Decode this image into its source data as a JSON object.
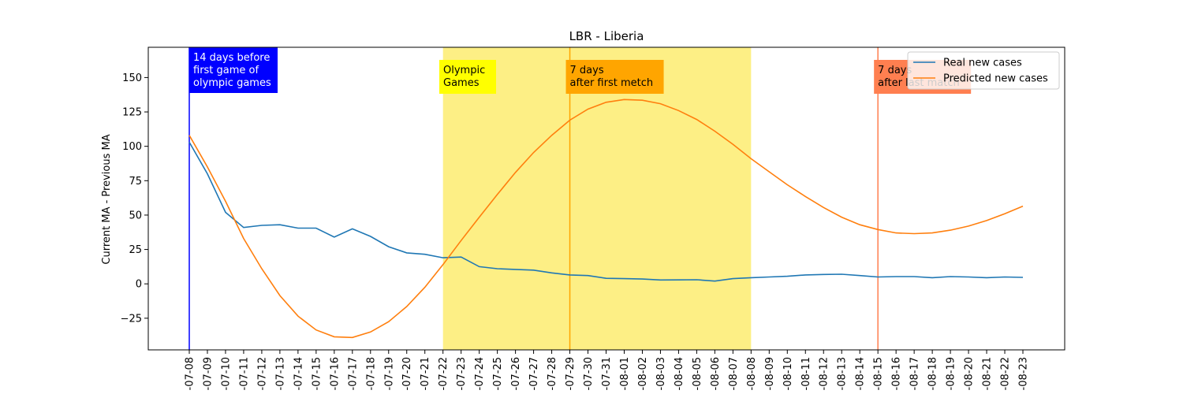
{
  "chart_data": {
    "type": "line",
    "title": "LBR - Liberia",
    "xlabel": "",
    "ylabel": "Current MA - Previous MA",
    "ylim": [
      -48,
      172
    ],
    "yticks": [
      -25,
      0,
      25,
      50,
      75,
      100,
      125,
      150
    ],
    "grid": false,
    "legend_position": "top-right",
    "x": [
      "2021-07-08",
      "2021-07-09",
      "2021-07-10",
      "2021-07-11",
      "2021-07-12",
      "2021-07-13",
      "2021-07-14",
      "2021-07-15",
      "2021-07-16",
      "2021-07-17",
      "2021-07-18",
      "2021-07-19",
      "2021-07-20",
      "2021-07-21",
      "2021-07-22",
      "2021-07-23",
      "2021-07-24",
      "2021-07-25",
      "2021-07-26",
      "2021-07-27",
      "2021-07-28",
      "2021-07-29",
      "2021-07-30",
      "2021-07-31",
      "2021-08-01",
      "2021-08-02",
      "2021-08-03",
      "2021-08-04",
      "2021-08-05",
      "2021-08-06",
      "2021-08-07",
      "2021-08-08",
      "2021-08-09",
      "2021-08-10",
      "2021-08-11",
      "2021-08-12",
      "2021-08-13",
      "2021-08-14",
      "2021-08-15",
      "2021-08-16",
      "2021-08-17",
      "2021-08-18",
      "2021-08-19",
      "2021-08-20",
      "2021-08-21",
      "2021-08-22",
      "2021-08-23"
    ],
    "tick_labels": [
      "-07-08",
      "-07-09",
      "-07-10",
      "-07-11",
      "-07-12",
      "-07-13",
      "-07-14",
      "-07-15",
      "-07-16",
      "-07-17",
      "-07-18",
      "-07-19",
      "-07-20",
      "-07-21",
      "-07-22",
      "-07-23",
      "-07-24",
      "-07-25",
      "-07-26",
      "-07-27",
      "-07-28",
      "-07-29",
      "-07-30",
      "-07-31",
      "-08-01",
      "-08-02",
      "-08-03",
      "-08-04",
      "-08-05",
      "-08-06",
      "-08-07",
      "-08-08",
      "-08-09",
      "-08-10",
      "-08-11",
      "-08-12",
      "-08-13",
      "-08-14",
      "-08-15",
      "-08-16",
      "-08-17",
      "-08-18",
      "-08-19",
      "-08-20",
      "-08-21",
      "-08-22",
      "-08-23"
    ],
    "series": [
      {
        "name": "Real new cases",
        "color": "#1f77b4",
        "values": [
          103,
          80,
          52,
          41,
          42.5,
          43,
          40.5,
          40.5,
          34,
          40,
          34.5,
          27,
          22.5,
          21.5,
          19,
          19.5,
          12.5,
          11,
          10.5,
          10,
          8,
          6.5,
          6,
          4,
          3.8,
          3.5,
          2.8,
          2.9,
          3,
          2,
          3.8,
          4.5,
          5,
          5.5,
          6.5,
          6.8,
          7,
          6,
          5,
          5.3,
          5.3,
          4.5,
          5.3,
          5,
          4.5,
          5,
          4.7
        ]
      },
      {
        "name": "Predicted new cases",
        "color": "#ff7f0e",
        "values": [
          108,
          85,
          60,
          33,
          11,
          -8.5,
          -23.5,
          -33.5,
          -38.5,
          -39,
          -35,
          -27.5,
          -16.5,
          -2.5,
          14,
          31.5,
          48.5,
          65,
          81,
          95.5,
          108,
          119,
          127,
          132,
          134,
          133.5,
          131,
          126,
          119.5,
          111,
          101.5,
          91,
          81.5,
          72,
          63.5,
          55.5,
          48.5,
          43,
          39.5,
          37,
          36.5,
          37,
          39,
          42,
          46,
          51,
          56.5
        ]
      }
    ],
    "shaded_regions": [
      {
        "label": "Olympic Games",
        "start": "2021-07-22",
        "end": "2021-08-08",
        "color": "#fdef85"
      }
    ],
    "vertical_lines": [
      {
        "at": "2021-07-08",
        "color": "#0000ff",
        "label": "14 days before first game of olympic games"
      },
      {
        "at": "2021-07-29",
        "color": "#ffa500",
        "label": "7 days after first metch"
      },
      {
        "at": "2021-08-15",
        "color": "#ff7f50",
        "label": "7 days after last match"
      }
    ]
  },
  "annotations": [
    {
      "lines": [
        "14 days before",
        "first game of",
        "olympic games"
      ],
      "bg": "#0000ff",
      "fg": "#ffffff"
    },
    {
      "lines": [
        "Olympic",
        "Games"
      ],
      "bg": "#ffff00",
      "fg": "#000000"
    },
    {
      "lines": [
        "7 days",
        "after first metch"
      ],
      "bg": "#ffa500",
      "fg": "#000000"
    },
    {
      "lines": [
        "7 days",
        "after last match"
      ],
      "bg": "#ff7f50",
      "fg": "#000000"
    }
  ]
}
